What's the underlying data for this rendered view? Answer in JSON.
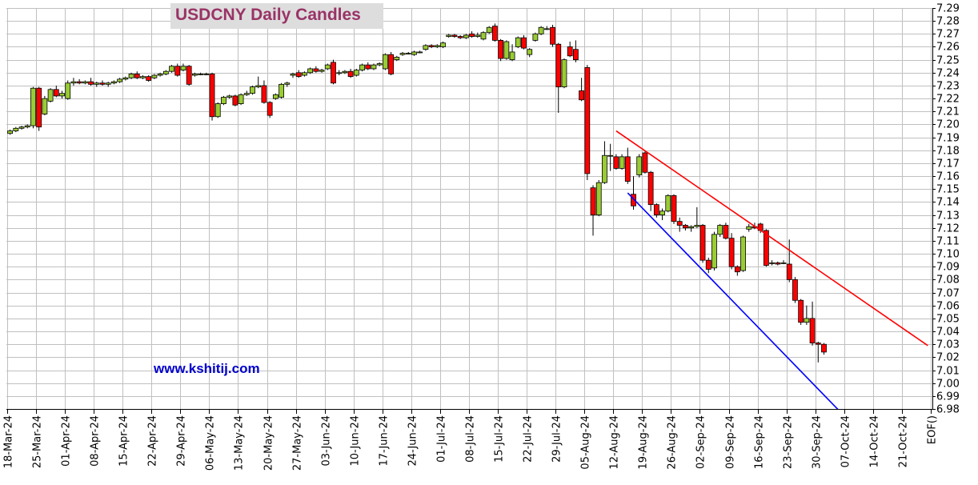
{
  "chart_data": {
    "type": "candlestick",
    "title": "USDCNY Daily Candles",
    "watermark": "www.kshitij.com",
    "ylim": [
      6.98,
      7.29
    ],
    "ytick_step": 0.01,
    "y_axis_side": "right",
    "grid": true,
    "x_tick_labels": [
      "18-Mar-24",
      "25-Mar-24",
      "01-Apr-24",
      "08-Apr-24",
      "15-Apr-24",
      "22-Apr-24",
      "29-Apr-24",
      "06-May-24",
      "13-May-24",
      "20-May-24",
      "27-May-24",
      "03-Jun-24",
      "10-Jun-24",
      "17-Jun-24",
      "24-Jun-24",
      "01-Jul-24",
      "08-Jul-24",
      "15-Jul-24",
      "22-Jul-24",
      "29-Jul-24",
      "05-Aug-24",
      "12-Aug-24",
      "19-Aug-24",
      "26-Aug-24",
      "02-Sep-24",
      "09-Sep-24",
      "16-Sep-24",
      "23-Sep-24",
      "30-Sep-24",
      "07-Oct-24",
      "14-Oct-24",
      "21-Oct-24",
      "EOF()"
    ],
    "candles": [
      {
        "d": "2024-03-18",
        "o": 7.193,
        "h": 7.196,
        "l": 7.192,
        "c": 7.195
      },
      {
        "d": "2024-03-19",
        "o": 7.195,
        "h": 7.198,
        "l": 7.194,
        "c": 7.197
      },
      {
        "d": "2024-03-20",
        "o": 7.197,
        "h": 7.199,
        "l": 7.196,
        "c": 7.198
      },
      {
        "d": "2024-03-21",
        "o": 7.198,
        "h": 7.2,
        "l": 7.197,
        "c": 7.199
      },
      {
        "d": "2024-03-22",
        "o": 7.199,
        "h": 7.229,
        "l": 7.197,
        "c": 7.228
      },
      {
        "d": "2024-03-25",
        "o": 7.228,
        "h": 7.229,
        "l": 7.195,
        "c": 7.198
      },
      {
        "d": "2024-03-26",
        "o": 7.208,
        "h": 7.222,
        "l": 7.207,
        "c": 7.22
      },
      {
        "d": "2024-03-27",
        "o": 7.218,
        "h": 7.228,
        "l": 7.217,
        "c": 7.227
      },
      {
        "d": "2024-03-28",
        "o": 7.227,
        "h": 7.23,
        "l": 7.221,
        "c": 7.222
      },
      {
        "d": "2024-03-29",
        "o": 7.222,
        "h": 7.226,
        "l": 7.22,
        "c": 7.224
      },
      {
        "d": "2024-04-01",
        "o": 7.22,
        "h": 7.234,
        "l": 7.219,
        "c": 7.232
      },
      {
        "d": "2024-04-02",
        "o": 7.232,
        "h": 7.236,
        "l": 7.23,
        "c": 7.233
      },
      {
        "d": "2024-04-03",
        "o": 7.233,
        "h": 7.235,
        "l": 7.231,
        "c": 7.232
      },
      {
        "d": "2024-04-04",
        "o": 7.232,
        "h": 7.234,
        "l": 7.231,
        "c": 7.233
      },
      {
        "d": "2024-04-05",
        "o": 7.233,
        "h": 7.236,
        "l": 7.23,
        "c": 7.231
      },
      {
        "d": "2024-04-08",
        "o": 7.231,
        "h": 7.233,
        "l": 7.229,
        "c": 7.232
      },
      {
        "d": "2024-04-09",
        "o": 7.232,
        "h": 7.234,
        "l": 7.23,
        "c": 7.231
      },
      {
        "d": "2024-04-10",
        "o": 7.231,
        "h": 7.233,
        "l": 7.229,
        "c": 7.232
      },
      {
        "d": "2024-04-11",
        "o": 7.232,
        "h": 7.234,
        "l": 7.231,
        "c": 7.233
      },
      {
        "d": "2024-04-12",
        "o": 7.233,
        "h": 7.236,
        "l": 7.232,
        "c": 7.235
      },
      {
        "d": "2024-04-15",
        "o": 7.235,
        "h": 7.237,
        "l": 7.234,
        "c": 7.236
      },
      {
        "d": "2024-04-16",
        "o": 7.236,
        "h": 7.24,
        "l": 7.235,
        "c": 7.239
      },
      {
        "d": "2024-04-17",
        "o": 7.239,
        "h": 7.241,
        "l": 7.235,
        "c": 7.236
      },
      {
        "d": "2024-04-18",
        "o": 7.236,
        "h": 7.238,
        "l": 7.235,
        "c": 7.237
      },
      {
        "d": "2024-04-19",
        "o": 7.237,
        "h": 7.238,
        "l": 7.233,
        "c": 7.234
      },
      {
        "d": "2024-04-22",
        "o": 7.236,
        "h": 7.239,
        "l": 7.235,
        "c": 7.238
      },
      {
        "d": "2024-04-23",
        "o": 7.238,
        "h": 7.24,
        "l": 7.237,
        "c": 7.239
      },
      {
        "d": "2024-04-24",
        "o": 7.239,
        "h": 7.242,
        "l": 7.238,
        "c": 7.241
      },
      {
        "d": "2024-04-25",
        "o": 7.241,
        "h": 7.246,
        "l": 7.24,
        "c": 7.245
      },
      {
        "d": "2024-04-26",
        "o": 7.245,
        "h": 7.247,
        "l": 7.237,
        "c": 7.238
      },
      {
        "d": "2024-04-29",
        "o": 7.242,
        "h": 7.247,
        "l": 7.241,
        "c": 7.245
      },
      {
        "d": "2024-04-30",
        "o": 7.245,
        "h": 7.246,
        "l": 7.23,
        "c": 7.231
      },
      {
        "d": "2024-05-01",
        "o": 7.238,
        "h": 7.24,
        "l": 7.237,
        "c": 7.239
      },
      {
        "d": "2024-05-02",
        "o": 7.239,
        "h": 7.24,
        "l": 7.238,
        "c": 7.239
      },
      {
        "d": "2024-05-03",
        "o": 7.239,
        "h": 7.24,
        "l": 7.238,
        "c": 7.239
      },
      {
        "d": "2024-05-06",
        "o": 7.239,
        "h": 7.24,
        "l": 7.203,
        "c": 7.206
      },
      {
        "d": "2024-05-07",
        "o": 7.206,
        "h": 7.217,
        "l": 7.205,
        "c": 7.216
      },
      {
        "d": "2024-05-08",
        "o": 7.216,
        "h": 7.222,
        "l": 7.215,
        "c": 7.221
      },
      {
        "d": "2024-05-09",
        "o": 7.221,
        "h": 7.223,
        "l": 7.22,
        "c": 7.222
      },
      {
        "d": "2024-05-10",
        "o": 7.222,
        "h": 7.223,
        "l": 7.214,
        "c": 7.215
      },
      {
        "d": "2024-05-13",
        "o": 7.216,
        "h": 7.224,
        "l": 7.215,
        "c": 7.223
      },
      {
        "d": "2024-05-14",
        "o": 7.223,
        "h": 7.226,
        "l": 7.222,
        "c": 7.224
      },
      {
        "d": "2024-05-15",
        "o": 7.224,
        "h": 7.23,
        "l": 7.223,
        "c": 7.229
      },
      {
        "d": "2024-05-16",
        "o": 7.229,
        "h": 7.237,
        "l": 7.228,
        "c": 7.23
      },
      {
        "d": "2024-05-17",
        "o": 7.23,
        "h": 7.234,
        "l": 7.216,
        "c": 7.217
      },
      {
        "d": "2024-05-20",
        "o": 7.217,
        "h": 7.218,
        "l": 7.205,
        "c": 7.207
      },
      {
        "d": "2024-05-21",
        "o": 7.22,
        "h": 7.224,
        "l": 7.219,
        "c": 7.223
      },
      {
        "d": "2024-05-22",
        "o": 7.221,
        "h": 7.232,
        "l": 7.22,
        "c": 7.231
      },
      {
        "d": "2024-05-23",
        "o": 7.231,
        "h": 7.233,
        "l": 7.229,
        "c": 7.232
      },
      {
        "d": "2024-05-24",
        "o": 7.238,
        "h": 7.24,
        "l": 7.236,
        "c": 7.239
      },
      {
        "d": "2024-05-27",
        "o": 7.24,
        "h": 7.242,
        "l": 7.236,
        "c": 7.237
      },
      {
        "d": "2024-05-28",
        "o": 7.238,
        "h": 7.241,
        "l": 7.237,
        "c": 7.24
      },
      {
        "d": "2024-05-29",
        "o": 7.24,
        "h": 7.244,
        "l": 7.239,
        "c": 7.243
      },
      {
        "d": "2024-05-30",
        "o": 7.243,
        "h": 7.245,
        "l": 7.24,
        "c": 7.241
      },
      {
        "d": "2024-05-31",
        "o": 7.241,
        "h": 7.243,
        "l": 7.24,
        "c": 7.242
      },
      {
        "d": "2024-06-03",
        "o": 7.243,
        "h": 7.247,
        "l": 7.242,
        "c": 7.246
      },
      {
        "d": "2024-06-04",
        "o": 7.248,
        "h": 7.25,
        "l": 7.231,
        "c": 7.232
      },
      {
        "d": "2024-06-05",
        "o": 7.24,
        "h": 7.242,
        "l": 7.238,
        "c": 7.24
      },
      {
        "d": "2024-06-06",
        "o": 7.24,
        "h": 7.242,
        "l": 7.239,
        "c": 7.241
      },
      {
        "d": "2024-06-07",
        "o": 7.241,
        "h": 7.243,
        "l": 7.236,
        "c": 7.237
      },
      {
        "d": "2024-06-10",
        "o": 7.238,
        "h": 7.243,
        "l": 7.237,
        "c": 7.242
      },
      {
        "d": "2024-06-11",
        "o": 7.242,
        "h": 7.247,
        "l": 7.241,
        "c": 7.246
      },
      {
        "d": "2024-06-12",
        "o": 7.246,
        "h": 7.248,
        "l": 7.242,
        "c": 7.243
      },
      {
        "d": "2024-06-13",
        "o": 7.243,
        "h": 7.247,
        "l": 7.242,
        "c": 7.246
      },
      {
        "d": "2024-06-14",
        "o": 7.246,
        "h": 7.248,
        "l": 7.245,
        "c": 7.247
      },
      {
        "d": "2024-06-17",
        "o": 7.243,
        "h": 7.255,
        "l": 7.242,
        "c": 7.254
      },
      {
        "d": "2024-06-18",
        "o": 7.254,
        "h": 7.256,
        "l": 7.238,
        "c": 7.239
      },
      {
        "d": "2024-06-19",
        "o": 7.25,
        "h": 7.253,
        "l": 7.249,
        "c": 7.252
      },
      {
        "d": "2024-06-20",
        "o": 7.254,
        "h": 7.256,
        "l": 7.253,
        "c": 7.255
      },
      {
        "d": "2024-06-21",
        "o": 7.255,
        "h": 7.256,
        "l": 7.254,
        "c": 7.255
      },
      {
        "d": "2024-06-24",
        "o": 7.254,
        "h": 7.257,
        "l": 7.253,
        "c": 7.256
      },
      {
        "d": "2024-06-25",
        "o": 7.256,
        "h": 7.257,
        "l": 7.255,
        "c": 7.256
      },
      {
        "d": "2024-06-26",
        "o": 7.258,
        "h": 7.262,
        "l": 7.257,
        "c": 7.261
      },
      {
        "d": "2024-06-27",
        "o": 7.261,
        "h": 7.262,
        "l": 7.259,
        "c": 7.26
      },
      {
        "d": "2024-06-28",
        "o": 7.26,
        "h": 7.262,
        "l": 7.259,
        "c": 7.261
      },
      {
        "d": "2024-07-01",
        "o": 7.26,
        "h": 7.264,
        "l": 7.259,
        "c": 7.263
      },
      {
        "d": "2024-07-02",
        "o": 7.268,
        "h": 7.27,
        "l": 7.267,
        "c": 7.269
      },
      {
        "d": "2024-07-03",
        "o": 7.269,
        "h": 7.27,
        "l": 7.267,
        "c": 7.268
      },
      {
        "d": "2024-07-04",
        "o": 7.268,
        "h": 7.269,
        "l": 7.266,
        "c": 7.267
      },
      {
        "d": "2024-07-05",
        "o": 7.267,
        "h": 7.27,
        "l": 7.266,
        "c": 7.269
      },
      {
        "d": "2024-07-08",
        "o": 7.27,
        "h": 7.272,
        "l": 7.267,
        "c": 7.268
      },
      {
        "d": "2024-07-09",
        "o": 7.268,
        "h": 7.271,
        "l": 7.267,
        "c": 7.269
      },
      {
        "d": "2024-07-10",
        "o": 7.266,
        "h": 7.272,
        "l": 7.265,
        "c": 7.271
      },
      {
        "d": "2024-07-11",
        "o": 7.271,
        "h": 7.276,
        "l": 7.27,
        "c": 7.275
      },
      {
        "d": "2024-07-12",
        "o": 7.276,
        "h": 7.278,
        "l": 7.264,
        "c": 7.265
      },
      {
        "d": "2024-07-15",
        "o": 7.265,
        "h": 7.266,
        "l": 7.249,
        "c": 7.251
      },
      {
        "d": "2024-07-16",
        "o": 7.251,
        "h": 7.265,
        "l": 7.25,
        "c": 7.264
      },
      {
        "d": "2024-07-17",
        "o": 7.25,
        "h": 7.262,
        "l": 7.249,
        "c": 7.256
      },
      {
        "d": "2024-07-18",
        "o": 7.26,
        "h": 7.268,
        "l": 7.259,
        "c": 7.267
      },
      {
        "d": "2024-07-19",
        "o": 7.267,
        "h": 7.269,
        "l": 7.258,
        "c": 7.259
      },
      {
        "d": "2024-07-22",
        "o": 7.254,
        "h": 7.259,
        "l": 7.252,
        "c": 7.258
      },
      {
        "d": "2024-07-23",
        "o": 7.265,
        "h": 7.271,
        "l": 7.264,
        "c": 7.27
      },
      {
        "d": "2024-07-24",
        "o": 7.27,
        "h": 7.276,
        "l": 7.269,
        "c": 7.275
      },
      {
        "d": "2024-07-25",
        "o": 7.274,
        "h": 7.276,
        "l": 7.273,
        "c": 7.274
      },
      {
        "d": "2024-07-26",
        "o": 7.275,
        "h": 7.277,
        "l": 7.26,
        "c": 7.262
      },
      {
        "d": "2024-07-29",
        "o": 7.262,
        "h": 7.263,
        "l": 7.209,
        "c": 7.229
      },
      {
        "d": "2024-07-30",
        "o": 7.229,
        "h": 7.251,
        "l": 7.228,
        "c": 7.25
      },
      {
        "d": "2024-07-31",
        "o": 7.26,
        "h": 7.264,
        "l": 7.252,
        "c": 7.253
      },
      {
        "d": "2024-08-01",
        "o": 7.258,
        "h": 7.265,
        "l": 7.248,
        "c": 7.25
      },
      {
        "d": "2024-08-02",
        "o": 7.226,
        "h": 7.236,
        "l": 7.218,
        "c": 7.219
      },
      {
        "d": "2024-08-05",
        "o": 7.244,
        "h": 7.246,
        "l": 7.157,
        "c": 7.162
      },
      {
        "d": "2024-08-06",
        "o": 7.151,
        "h": 7.153,
        "l": 7.114,
        "c": 7.13
      },
      {
        "d": "2024-08-07",
        "o": 7.13,
        "h": 7.157,
        "l": 7.129,
        "c": 7.155
      },
      {
        "d": "2024-08-08",
        "o": 7.155,
        "h": 7.187,
        "l": 7.154,
        "c": 7.176
      },
      {
        "d": "2024-08-09",
        "o": 7.176,
        "h": 7.185,
        "l": 7.164,
        "c": 7.176
      },
      {
        "d": "2024-08-12",
        "o": 7.175,
        "h": 7.177,
        "l": 7.165,
        "c": 7.166
      },
      {
        "d": "2024-08-13",
        "o": 7.166,
        "h": 7.177,
        "l": 7.165,
        "c": 7.175
      },
      {
        "d": "2024-08-14",
        "o": 7.175,
        "h": 7.182,
        "l": 7.154,
        "c": 7.156
      },
      {
        "d": "2024-08-15",
        "o": 7.146,
        "h": 7.16,
        "l": 7.134,
        "c": 7.137
      },
      {
        "d": "2024-08-16",
        "o": 7.161,
        "h": 7.177,
        "l": 7.159,
        "c": 7.175
      },
      {
        "d": "2024-08-19",
        "o": 7.178,
        "h": 7.179,
        "l": 7.162,
        "c": 7.163
      },
      {
        "d": "2024-08-20",
        "o": 7.163,
        "h": 7.164,
        "l": 7.133,
        "c": 7.138
      },
      {
        "d": "2024-08-21",
        "o": 7.138,
        "h": 7.139,
        "l": 7.128,
        "c": 7.13
      },
      {
        "d": "2024-08-22",
        "o": 7.13,
        "h": 7.135,
        "l": 7.126,
        "c": 7.133
      },
      {
        "d": "2024-08-23",
        "o": 7.133,
        "h": 7.146,
        "l": 7.132,
        "c": 7.145
      },
      {
        "d": "2024-08-26",
        "o": 7.145,
        "h": 7.146,
        "l": 7.123,
        "c": 7.125
      },
      {
        "d": "2024-08-27",
        "o": 7.125,
        "h": 7.128,
        "l": 7.117,
        "c": 7.122
      },
      {
        "d": "2024-08-28",
        "o": 7.122,
        "h": 7.123,
        "l": 7.118,
        "c": 7.12
      },
      {
        "d": "2024-08-29",
        "o": 7.12,
        "h": 7.122,
        "l": 7.117,
        "c": 7.121
      },
      {
        "d": "2024-08-30",
        "o": 7.121,
        "h": 7.136,
        "l": 7.12,
        "c": 7.122
      },
      {
        "d": "2024-09-02",
        "o": 7.122,
        "h": 7.123,
        "l": 7.093,
        "c": 7.095
      },
      {
        "d": "2024-09-03",
        "o": 7.095,
        "h": 7.097,
        "l": 7.085,
        "c": 7.088
      },
      {
        "d": "2024-09-04",
        "o": 7.089,
        "h": 7.117,
        "l": 7.087,
        "c": 7.115
      },
      {
        "d": "2024-09-05",
        "o": 7.115,
        "h": 7.123,
        "l": 7.113,
        "c": 7.122
      },
      {
        "d": "2024-09-06",
        "o": 7.122,
        "h": 7.124,
        "l": 7.111,
        "c": 7.112
      },
      {
        "d": "2024-09-09",
        "o": 7.112,
        "h": 7.116,
        "l": 7.088,
        "c": 7.09
      },
      {
        "d": "2024-09-10",
        "o": 7.09,
        "h": 7.091,
        "l": 7.083,
        "c": 7.086
      },
      {
        "d": "2024-09-11",
        "o": 7.087,
        "h": 7.114,
        "l": 7.086,
        "c": 7.113
      },
      {
        "d": "2024-09-12",
        "o": 7.119,
        "h": 7.123,
        "l": 7.117,
        "c": 7.121
      },
      {
        "d": "2024-09-13",
        "o": 7.121,
        "h": 7.124,
        "l": 7.119,
        "c": 7.12
      },
      {
        "d": "2024-09-16",
        "o": 7.123,
        "h": 7.124,
        "l": 7.116,
        "c": 7.118
      },
      {
        "d": "2024-09-17",
        "o": 7.118,
        "h": 7.119,
        "l": 7.09,
        "c": 7.091
      },
      {
        "d": "2024-09-18",
        "o": 7.093,
        "h": 7.095,
        "l": 7.091,
        "c": 7.093
      },
      {
        "d": "2024-09-19",
        "o": 7.093,
        "h": 7.094,
        "l": 7.091,
        "c": 7.092
      },
      {
        "d": "2024-09-20",
        "o": 7.093,
        "h": 7.095,
        "l": 7.092,
        "c": 7.093
      },
      {
        "d": "2024-09-23",
        "o": 7.092,
        "h": 7.111,
        "l": 7.078,
        "c": 7.08
      },
      {
        "d": "2024-09-24",
        "o": 7.08,
        "h": 7.082,
        "l": 7.062,
        "c": 7.064
      },
      {
        "d": "2024-09-25",
        "o": 7.064,
        "h": 7.065,
        "l": 7.045,
        "c": 7.047
      },
      {
        "d": "2024-09-26",
        "o": 7.047,
        "h": 7.06,
        "l": 7.045,
        "c": 7.05
      },
      {
        "d": "2024-09-27",
        "o": 7.05,
        "h": 7.063,
        "l": 7.029,
        "c": 7.031
      },
      {
        "d": "2024-09-30",
        "o": 7.031,
        "h": 7.032,
        "l": 7.016,
        "c": 7.03
      },
      {
        "d": "2024-10-01",
        "o": 7.03,
        "h": 7.031,
        "l": 7.022,
        "c": 7.024
      }
    ],
    "trendlines": [
      {
        "color": "#ff0000",
        "start": {
          "d": "2024-08-12",
          "v": 7.195
        },
        "end": {
          "d": "2024-10-27",
          "v": 7.029
        }
      },
      {
        "color": "#0000ff",
        "start": {
          "d": "2024-08-14",
          "v": 7.147
        },
        "end": {
          "d": "2024-10-06",
          "v": 6.977
        }
      }
    ],
    "colors": {
      "up": "#99cc33",
      "down": "#ff0000",
      "grid": "#c0c0c0",
      "axis": "#000000"
    }
  }
}
